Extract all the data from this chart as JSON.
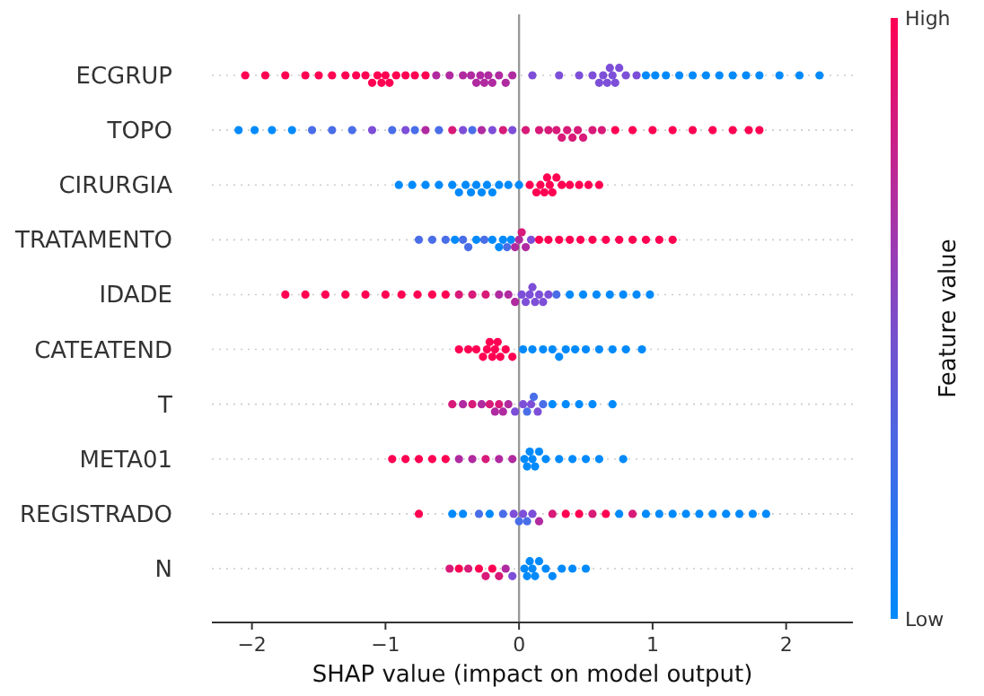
{
  "chart_data": {
    "type": "scatter",
    "orientation": "horizontal",
    "xlabel": "SHAP value (impact on model output)",
    "clabel": "Feature value",
    "categories": [
      "ECGRUP",
      "TOPO",
      "CIRURGIA",
      "TRATAMENTO",
      "IDADE",
      "CATEATEND",
      "T",
      "META01",
      "REGISTRADO",
      "N"
    ],
    "xlim": [
      -2.3,
      2.5
    ],
    "xticks": [
      {
        "value": -2,
        "label": "−2"
      },
      {
        "value": -1,
        "label": "−1"
      },
      0,
      1,
      2
    ],
    "clim": [
      0,
      1
    ],
    "cticks": [
      {
        "value": 0,
        "label": "Low"
      },
      {
        "value": 1,
        "label": "High"
      }
    ],
    "grid": "y",
    "marker": "circle",
    "tick_labels": "x",
    "ref_lines": [
      {
        "axis": "x",
        "value": 0,
        "color": "#999999"
      }
    ],
    "series": [
      {
        "x": [
          "ECGRUP",
          "ECGRUP",
          "ECGRUP",
          "ECGRUP",
          "ECGRUP",
          "ECGRUP",
          "ECGRUP",
          "ECGRUP",
          "ECGRUP",
          "ECGRUP",
          "ECGRUP",
          "ECGRUP",
          "ECGRUP",
          "ECGRUP",
          "ECGRUP",
          "ECGRUP",
          "ECGRUP",
          "ECGRUP",
          "ECGRUP",
          "ECGRUP",
          "ECGRUP",
          "ECGRUP",
          "ECGRUP",
          "ECGRUP",
          "ECGRUP",
          "ECGRUP",
          "ECGRUP",
          "ECGRUP",
          "ECGRUP",
          "ECGRUP",
          "ECGRUP",
          "ECGRUP",
          "ECGRUP",
          "ECGRUP",
          "ECGRUP",
          "ECGRUP",
          "ECGRUP",
          "ECGRUP",
          "ECGRUP",
          "ECGRUP",
          "ECGRUP",
          "ECGRUP",
          "ECGRUP",
          "ECGRUP",
          "ECGRUP",
          "ECGRUP",
          "ECGRUP",
          "ECGRUP",
          "ECGRUP",
          "ECGRUP",
          "ECGRUP",
          "ECGRUP",
          "ECGRUP",
          "ECGRUP",
          "ECGRUP",
          "ECGRUP"
        ],
        "values": [
          -2.05,
          -1.9,
          -1.75,
          -1.6,
          -1.5,
          -1.4,
          -1.3,
          -1.22,
          -1.15,
          -1.1,
          -1.06,
          -1.03,
          -1.0,
          -0.97,
          -0.92,
          -0.85,
          -0.78,
          -0.7,
          -0.62,
          -0.52,
          -0.42,
          -0.36,
          -0.32,
          -0.29,
          -0.26,
          -0.23,
          -0.2,
          -0.15,
          -0.1,
          -0.05,
          0.1,
          0.3,
          0.45,
          0.55,
          0.6,
          0.63,
          0.66,
          0.68,
          0.7,
          0.72,
          0.75,
          0.8,
          0.88,
          0.95,
          1.02,
          1.1,
          1.2,
          1.3,
          1.4,
          1.5,
          1.6,
          1.7,
          1.8,
          1.95,
          2.1,
          2.25
        ],
        "colors": [
          "#ff0052",
          "#ff0052",
          "#ff0052",
          "#ff0052",
          "#ff0052",
          "#ff0052",
          "#ff0052",
          "#ff0052",
          "#ff0052",
          "#ff0052",
          "#ff0052",
          "#ff0052",
          "#ff0052",
          "#ff0052",
          "#ff0052",
          "#ff0052",
          "#ff0052",
          "#ff0052",
          "#b02aa0",
          "#b02aa0",
          "#b02aa0",
          "#b02aa0",
          "#b02aa0",
          "#b02aa0",
          "#b02aa0",
          "#b02aa0",
          "#b02aa0",
          "#b02aa0",
          "#b02aa0",
          "#b02aa0",
          "#7d4fd8",
          "#7d4fd8",
          "#7d4fd8",
          "#7d4fd8",
          "#7d4fd8",
          "#7d4fd8",
          "#7d4fd8",
          "#7d4fd8",
          "#7d4fd8",
          "#7d4fd8",
          "#7d4fd8",
          "#7d4fd8",
          "#7d4fd8",
          "#008afb",
          "#008afb",
          "#008afb",
          "#008afb",
          "#008afb",
          "#008afb",
          "#008afb",
          "#008afb",
          "#008afb",
          "#008afb",
          "#008afb",
          "#008afb",
          "#008afb"
        ]
      },
      {
        "x": [
          "TOPO",
          "TOPO",
          "TOPO",
          "TOPO",
          "TOPO",
          "TOPO",
          "TOPO",
          "TOPO",
          "TOPO",
          "TOPO",
          "TOPO",
          "TOPO",
          "TOPO",
          "TOPO",
          "TOPO",
          "TOPO",
          "TOPO",
          "TOPO",
          "TOPO",
          "TOPO",
          "TOPO",
          "TOPO",
          "TOPO",
          "TOPO",
          "TOPO",
          "TOPO",
          "TOPO",
          "TOPO",
          "TOPO",
          "TOPO",
          "TOPO",
          "TOPO",
          "TOPO",
          "TOPO",
          "TOPO",
          "TOPO",
          "TOPO",
          "TOPO",
          "TOPO",
          "TOPO"
        ],
        "values": [
          -2.1,
          -1.98,
          -1.85,
          -1.7,
          -1.55,
          -1.4,
          -1.25,
          -1.1,
          -0.95,
          -0.85,
          -0.78,
          -0.7,
          -0.6,
          -0.5,
          -0.42,
          -0.35,
          -0.28,
          -0.2,
          -0.12,
          -0.05,
          0.05,
          0.15,
          0.22,
          0.28,
          0.32,
          0.36,
          0.4,
          0.44,
          0.48,
          0.55,
          0.62,
          0.72,
          0.85,
          1.0,
          1.15,
          1.3,
          1.45,
          1.6,
          1.72,
          1.8
        ],
        "colors": [
          "#008afb",
          "#008afb",
          "#008afb",
          "#008afb",
          "#4a6ee8",
          "#4a6ee8",
          "#4a6ee8",
          "#7d4fd8",
          "#4a6ee8",
          "#7d4fd8",
          "#4a6ee8",
          "#b02aa0",
          "#4a6ee8",
          "#d81a78",
          "#7d4fd8",
          "#4a6ee8",
          "#b02aa0",
          "#7d4fd8",
          "#d81a78",
          "#7d4fd8",
          "#d81a78",
          "#d81a78",
          "#d81a78",
          "#d81a78",
          "#d81a78",
          "#d81a78",
          "#d81a78",
          "#d81a78",
          "#d81a78",
          "#d81a78",
          "#d81a78",
          "#ff0052",
          "#ff0052",
          "#ff0052",
          "#ff0052",
          "#ff0052",
          "#ff0052",
          "#ff0052",
          "#ff0052",
          "#ff0052"
        ]
      },
      {
        "x": [
          "CIRURGIA",
          "CIRURGIA",
          "CIRURGIA",
          "CIRURGIA",
          "CIRURGIA",
          "CIRURGIA",
          "CIRURGIA",
          "CIRURGIA",
          "CIRURGIA",
          "CIRURGIA",
          "CIRURGIA",
          "CIRURGIA",
          "CIRURGIA",
          "CIRURGIA",
          "CIRURGIA",
          "CIRURGIA",
          "CIRURGIA",
          "CIRURGIA",
          "CIRURGIA",
          "CIRURGIA",
          "CIRURGIA",
          "CIRURGIA",
          "CIRURGIA",
          "CIRURGIA",
          "CIRURGIA",
          "CIRURGIA",
          "CIRURGIA",
          "CIRURGIA"
        ],
        "values": [
          -0.9,
          -0.8,
          -0.7,
          -0.6,
          -0.5,
          -0.45,
          -0.4,
          -0.36,
          -0.32,
          -0.28,
          -0.24,
          -0.2,
          -0.15,
          -0.08,
          0.0,
          0.08,
          0.13,
          0.16,
          0.19,
          0.21,
          0.23,
          0.25,
          0.28,
          0.32,
          0.38,
          0.45,
          0.52,
          0.6
        ],
        "colors": [
          "#008afb",
          "#008afb",
          "#008afb",
          "#008afb",
          "#008afb",
          "#008afb",
          "#008afb",
          "#008afb",
          "#008afb",
          "#008afb",
          "#008afb",
          "#008afb",
          "#008afb",
          "#008afb",
          "#008afb",
          "#ff0052",
          "#ff0052",
          "#ff0052",
          "#ff0052",
          "#ff0052",
          "#ff0052",
          "#ff0052",
          "#ff0052",
          "#ff0052",
          "#ff0052",
          "#ff0052",
          "#ff0052",
          "#ff0052"
        ]
      },
      {
        "x": [
          "TRATAMENTO",
          "TRATAMENTO",
          "TRATAMENTO",
          "TRATAMENTO",
          "TRATAMENTO",
          "TRATAMENTO",
          "TRATAMENTO",
          "TRATAMENTO",
          "TRATAMENTO",
          "TRATAMENTO",
          "TRATAMENTO",
          "TRATAMENTO",
          "TRATAMENTO",
          "TRATAMENTO",
          "TRATAMENTO",
          "TRATAMENTO",
          "TRATAMENTO",
          "TRATAMENTO",
          "TRATAMENTO",
          "TRATAMENTO",
          "TRATAMENTO",
          "TRATAMENTO",
          "TRATAMENTO",
          "TRATAMENTO",
          "TRATAMENTO",
          "TRATAMENTO",
          "TRATAMENTO",
          "TRATAMENTO",
          "TRATAMENTO",
          "TRATAMENTO"
        ],
        "values": [
          -0.75,
          -0.65,
          -0.55,
          -0.48,
          -0.42,
          -0.38,
          -0.32,
          -0.26,
          -0.2,
          -0.15,
          -0.12,
          -0.09,
          -0.06,
          -0.03,
          0,
          0.02,
          0.05,
          0.09,
          0.15,
          0.22,
          0.3,
          0.38,
          0.46,
          0.55,
          0.65,
          0.75,
          0.85,
          0.95,
          1.05,
          1.15
        ],
        "colors": [
          "#4a6ee8",
          "#4a6ee8",
          "#4a6ee8",
          "#008afb",
          "#4a6ee8",
          "#4a6ee8",
          "#008afb",
          "#4a6ee8",
          "#008afb",
          "#008afb",
          "#008afb",
          "#4a6ee8",
          "#008afb",
          "#b02aa0",
          "#b02aa0",
          "#d81a78",
          "#b02aa0",
          "#7d4fd8",
          "#ff0052",
          "#ff0052",
          "#ff0052",
          "#ff0052",
          "#ff0052",
          "#ff0052",
          "#ff0052",
          "#ff0052",
          "#ff0052",
          "#ff0052",
          "#ff0052",
          "#ff0052"
        ]
      },
      {
        "x": [
          "IDADE",
          "IDADE",
          "IDADE",
          "IDADE",
          "IDADE",
          "IDADE",
          "IDADE",
          "IDADE",
          "IDADE",
          "IDADE",
          "IDADE",
          "IDADE",
          "IDADE",
          "IDADE",
          "IDADE",
          "IDADE",
          "IDADE",
          "IDADE",
          "IDADE",
          "IDADE",
          "IDADE",
          "IDADE",
          "IDADE",
          "IDADE",
          "IDADE",
          "IDADE",
          "IDADE",
          "IDADE",
          "IDADE",
          "IDADE",
          "IDADE",
          "IDADE"
        ],
        "values": [
          -1.75,
          -1.6,
          -1.45,
          -1.3,
          -1.15,
          -1.0,
          -0.88,
          -0.76,
          -0.65,
          -0.55,
          -0.45,
          -0.35,
          -0.25,
          -0.15,
          -0.08,
          -0.03,
          0.02,
          0.05,
          0.08,
          0.1,
          0.12,
          0.15,
          0.18,
          0.22,
          0.28,
          0.38,
          0.48,
          0.58,
          0.68,
          0.78,
          0.88,
          0.98
        ],
        "colors": [
          "#ff0052",
          "#ff0052",
          "#ff0052",
          "#ff0052",
          "#ff0052",
          "#ff0052",
          "#ff0052",
          "#ff0052",
          "#ff0052",
          "#ff0052",
          "#d81a78",
          "#d81a78",
          "#d81a78",
          "#b02aa0",
          "#b02aa0",
          "#b02aa0",
          "#7d4fd8",
          "#7d4fd8",
          "#7d4fd8",
          "#7d4fd8",
          "#7d4fd8",
          "#7d4fd8",
          "#7d4fd8",
          "#7d4fd8",
          "#4a6ee8",
          "#008afb",
          "#008afb",
          "#008afb",
          "#008afb",
          "#008afb",
          "#008afb",
          "#008afb"
        ]
      },
      {
        "x": [
          "CATEATEND",
          "CATEATEND",
          "CATEATEND",
          "CATEATEND",
          "CATEATEND",
          "CATEATEND",
          "CATEATEND",
          "CATEATEND",
          "CATEATEND",
          "CATEATEND",
          "CATEATEND",
          "CATEATEND",
          "CATEATEND",
          "CATEATEND",
          "CATEATEND",
          "CATEATEND",
          "CATEATEND",
          "CATEATEND",
          "CATEATEND",
          "CATEATEND",
          "CATEATEND",
          "CATEATEND",
          "CATEATEND",
          "CATEATEND"
        ],
        "values": [
          -0.45,
          -0.38,
          -0.32,
          -0.27,
          -0.24,
          -0.22,
          -0.2,
          -0.18,
          -0.16,
          -0.14,
          -0.1,
          -0.05,
          0.03,
          0.1,
          0.18,
          0.25,
          0.3,
          0.35,
          0.42,
          0.5,
          0.6,
          0.7,
          0.8,
          0.92
        ],
        "colors": [
          "#ff0052",
          "#ff0052",
          "#ff0052",
          "#ff0052",
          "#ff0052",
          "#ff0052",
          "#ff0052",
          "#ff0052",
          "#ff0052",
          "#ff0052",
          "#ff0052",
          "#ff0052",
          "#008afb",
          "#008afb",
          "#008afb",
          "#008afb",
          "#008afb",
          "#008afb",
          "#008afb",
          "#008afb",
          "#008afb",
          "#008afb",
          "#008afb",
          "#008afb"
        ]
      },
      {
        "x": [
          "T",
          "T",
          "T",
          "T",
          "T",
          "T",
          "T",
          "T",
          "T",
          "T",
          "T",
          "T",
          "T",
          "T",
          "T",
          "T",
          "T",
          "T",
          "T",
          "T",
          "T"
        ],
        "values": [
          -0.5,
          -0.42,
          -0.35,
          -0.28,
          -0.22,
          -0.18,
          -0.15,
          -0.12,
          -0.08,
          -0.03,
          0.03,
          0.06,
          0.09,
          0.11,
          0.14,
          0.18,
          0.25,
          0.35,
          0.45,
          0.55,
          0.7
        ],
        "colors": [
          "#d81a78",
          "#b02aa0",
          "#d81a78",
          "#b02aa0",
          "#d81a78",
          "#b02aa0",
          "#d81a78",
          "#b02aa0",
          "#b02aa0",
          "#7d4fd8",
          "#7d4fd8",
          "#4a6ee8",
          "#7d4fd8",
          "#4a6ee8",
          "#7d4fd8",
          "#4a6ee8",
          "#008afb",
          "#008afb",
          "#008afb",
          "#008afb",
          "#008afb"
        ]
      },
      {
        "x": [
          "META01",
          "META01",
          "META01",
          "META01",
          "META01",
          "META01",
          "META01",
          "META01",
          "META01",
          "META01",
          "META01",
          "META01",
          "META01",
          "META01",
          "META01",
          "META01",
          "META01",
          "META01",
          "META01",
          "META01",
          "META01",
          "META01"
        ],
        "values": [
          -0.95,
          -0.85,
          -0.75,
          -0.65,
          -0.55,
          -0.45,
          -0.35,
          -0.25,
          -0.15,
          -0.05,
          0.04,
          0.06,
          0.08,
          0.1,
          0.12,
          0.15,
          0.2,
          0.3,
          0.4,
          0.5,
          0.6,
          0.78
        ],
        "colors": [
          "#ff0052",
          "#ff0052",
          "#ff0052",
          "#ff0052",
          "#ff0052",
          "#b02aa0",
          "#b02aa0",
          "#d81a78",
          "#b02aa0",
          "#b02aa0",
          "#008afb",
          "#008afb",
          "#008afb",
          "#008afb",
          "#008afb",
          "#008afb",
          "#008afb",
          "#008afb",
          "#008afb",
          "#008afb",
          "#008afb",
          "#008afb"
        ]
      },
      {
        "x": [
          "REGISTRADO",
          "REGISTRADO",
          "REGISTRADO",
          "REGISTRADO",
          "REGISTRADO",
          "REGISTRADO",
          "REGISTRADO",
          "REGISTRADO",
          "REGISTRADO",
          "REGISTRADO",
          "REGISTRADO",
          "REGISTRADO",
          "REGISTRADO",
          "REGISTRADO",
          "REGISTRADO",
          "REGISTRADO",
          "REGISTRADO",
          "REGISTRADO",
          "REGISTRADO",
          "REGISTRADO",
          "REGISTRADO",
          "REGISTRADO",
          "REGISTRADO",
          "REGISTRADO",
          "REGISTRADO",
          "REGISTRADO",
          "REGISTRADO",
          "REGISTRADO",
          "REGISTRADO"
        ],
        "values": [
          -0.75,
          -0.5,
          -0.42,
          -0.3,
          -0.22,
          -0.12,
          -0.04,
          0,
          0.03,
          0.06,
          0.1,
          0.15,
          0.25,
          0.35,
          0.45,
          0.55,
          0.65,
          0.75,
          0.85,
          0.95,
          1.05,
          1.15,
          1.25,
          1.35,
          1.45,
          1.55,
          1.65,
          1.75,
          1.85
        ],
        "colors": [
          "#ff0052",
          "#008afb",
          "#008afb",
          "#4a6ee8",
          "#008afb",
          "#4a6ee8",
          "#7d4fd8",
          "#4a6ee8",
          "#7d4fd8",
          "#4a6ee8",
          "#7d4fd8",
          "#b02aa0",
          "#d81a78",
          "#ff0052",
          "#ff0052",
          "#d81a78",
          "#ff0052",
          "#008afb",
          "#d81a78",
          "#008afb",
          "#008afb",
          "#008afb",
          "#008afb",
          "#008afb",
          "#008afb",
          "#008afb",
          "#008afb",
          "#008afb",
          "#008afb"
        ]
      },
      {
        "x": [
          "N",
          "N",
          "N",
          "N",
          "N",
          "N",
          "N",
          "N",
          "N",
          "N",
          "N",
          "N",
          "N",
          "N",
          "N",
          "N",
          "N",
          "N",
          "N",
          "N"
        ],
        "values": [
          -0.52,
          -0.45,
          -0.38,
          -0.3,
          -0.25,
          -0.2,
          -0.15,
          -0.1,
          -0.05,
          0.04,
          0.06,
          0.08,
          0.1,
          0.12,
          0.15,
          0.2,
          0.25,
          0.32,
          0.4,
          0.5
        ],
        "colors": [
          "#d81a78",
          "#ff0052",
          "#d81a78",
          "#ff0052",
          "#d81a78",
          "#ff0052",
          "#d81a78",
          "#b02aa0",
          "#7d4fd8",
          "#008afb",
          "#008afb",
          "#008afb",
          "#008afb",
          "#008afb",
          "#008afb",
          "#008afb",
          "#008afb",
          "#008afb",
          "#008afb",
          "#008afb"
        ]
      }
    ]
  }
}
